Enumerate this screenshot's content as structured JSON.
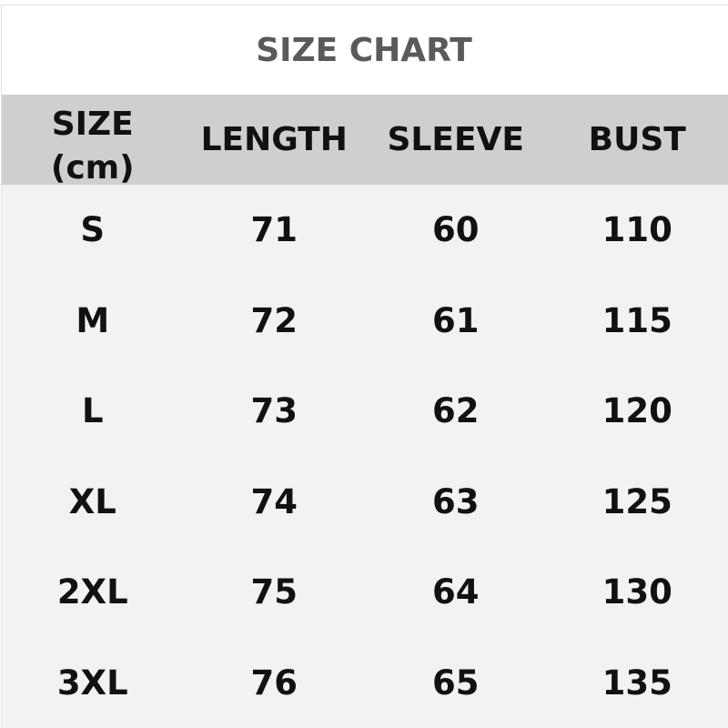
{
  "title": "SIZE CHART",
  "headers": {
    "size": "SIZE",
    "unit": "(cm)",
    "length": "LENGTH",
    "sleeve": "SLEEVE",
    "bust": "BUST"
  },
  "rows": [
    {
      "size": "S",
      "length": "71",
      "sleeve": "60",
      "bust": "110"
    },
    {
      "size": "M",
      "length": "72",
      "sleeve": "61",
      "bust": "115"
    },
    {
      "size": "L",
      "length": "73",
      "sleeve": "62",
      "bust": "120"
    },
    {
      "size": "XL",
      "length": "74",
      "sleeve": "63",
      "bust": "125"
    },
    {
      "size": "2XL",
      "length": "75",
      "sleeve": "64",
      "bust": "130"
    },
    {
      "size": "3XL",
      "length": "76",
      "sleeve": "65",
      "bust": "135"
    }
  ],
  "colors": {
    "title": "#5a5a5a",
    "header_bg": "#cfcfcf",
    "body_bg": "#f2f2f2",
    "text": "#111111"
  }
}
